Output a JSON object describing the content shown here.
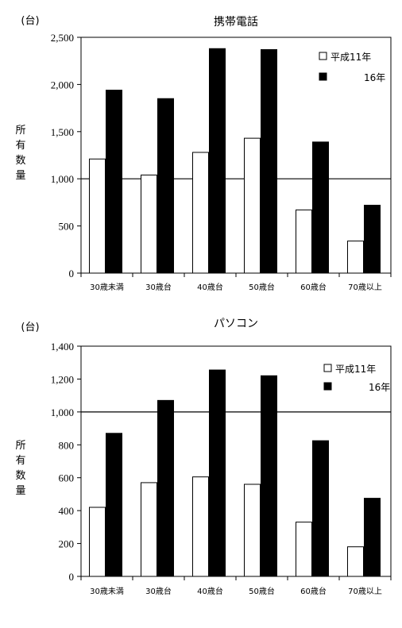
{
  "chart_data": [
    {
      "type": "bar",
      "title": "携帯電話",
      "unit_label": "(台)",
      "ylabel": "所有数量",
      "categories": [
        "30歳未満",
        "30歳台",
        "40歳台",
        "50歳台",
        "60歳台",
        "70歳以上"
      ],
      "series": [
        {
          "name": "平成11年",
          "color": "#ffffff",
          "values": [
            1210,
            1040,
            1280,
            1430,
            670,
            340
          ]
        },
        {
          "name": "16年",
          "color": "#000000",
          "values": [
            1940,
            1850,
            2380,
            2370,
            1390,
            720
          ]
        }
      ],
      "ylim": [
        0,
        2500
      ],
      "yticks": [
        0,
        500,
        1000,
        1500,
        2000,
        2500
      ],
      "ytick_labels": [
        "0",
        "500",
        "1,000",
        "1,500",
        "2,000",
        "2,500"
      ],
      "reference_line": 1000,
      "legend_position": "top-right",
      "grid": false
    },
    {
      "type": "bar",
      "title": "パソコン",
      "unit_label": "(台)",
      "ylabel": "所有数量",
      "categories": [
        "30歳未満",
        "30歳台",
        "40歳台",
        "50歳台",
        "60歳台",
        "70歳以上"
      ],
      "series": [
        {
          "name": "平成11年",
          "color": "#ffffff",
          "values": [
            420,
            570,
            605,
            560,
            330,
            180
          ]
        },
        {
          "name": "16年",
          "color": "#000000",
          "values": [
            870,
            1070,
            1255,
            1220,
            825,
            475
          ]
        }
      ],
      "ylim": [
        0,
        1400
      ],
      "yticks": [
        0,
        200,
        400,
        600,
        800,
        1000,
        1200,
        1400
      ],
      "ytick_labels": [
        "0",
        "200",
        "400",
        "600",
        "800",
        "1,000",
        "1,200",
        "1,400"
      ],
      "reference_line": 1000,
      "legend_position": "top-right",
      "grid": false
    }
  ]
}
